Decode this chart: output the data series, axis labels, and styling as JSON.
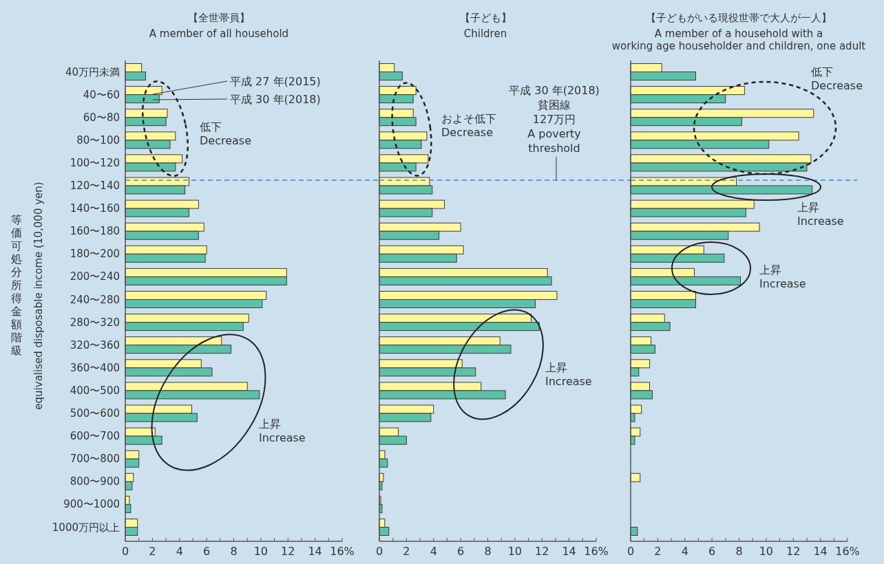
{
  "chart_data": [
    {
      "type": "bar",
      "orientation": "horizontal",
      "title": "【全世帯員】",
      "subtitle": "A member of all household",
      "ylabel": "等価可処分所得金額階級\nequivalised disposable income (10,000 yen)",
      "categories": [
        "40万円未満",
        "40〜60",
        "60〜80",
        "80〜100",
        "100〜120",
        "120〜140",
        "140〜160",
        "160〜180",
        "180〜200",
        "200〜240",
        "240〜280",
        "280〜320",
        "320〜360",
        "360〜400",
        "400〜500",
        "500〜600",
        "600〜700",
        "700〜800",
        "800〜900",
        "900〜1000",
        "1000万円以上"
      ],
      "series": [
        {
          "name": "平成 27 年(2015)",
          "color": "#fff799",
          "values": [
            1.2,
            2.7,
            3.1,
            3.7,
            4.2,
            4.7,
            5.4,
            5.8,
            6.0,
            11.9,
            10.4,
            9.1,
            7.1,
            5.6,
            9.0,
            4.9,
            2.2,
            1.0,
            0.6,
            0.3,
            0.9
          ]
        },
        {
          "name": "平成 30 年(2018)",
          "color": "#5bc2a8",
          "values": [
            1.5,
            2.5,
            3.0,
            3.3,
            3.7,
            4.4,
            4.7,
            5.4,
            5.9,
            11.9,
            10.1,
            8.7,
            7.8,
            6.4,
            9.9,
            5.3,
            2.7,
            1.0,
            0.5,
            0.4,
            0.9
          ]
        }
      ],
      "xlim": [
        0,
        16
      ],
      "xticks": [
        0,
        {
          "value": 1,
          "label": null
        },
        2,
        {
          "value": 3,
          "label": null
        },
        4,
        {
          "value": 5,
          "label": null
        },
        6,
        {
          "value": 7,
          "label": null
        },
        8,
        {
          "value": 9,
          "label": null
        },
        10,
        {
          "value": 11,
          "label": null
        },
        12,
        {
          "value": 13,
          "label": null
        },
        14,
        {
          "value": 15,
          "label": null
        },
        {
          "value": 16,
          "label": "16%"
        }
      ],
      "ref_lines": [
        {
          "axis": "y",
          "value": "120〜140",
          "color": "#3388dd",
          "line_style": "dashed"
        }
      ],
      "annotations": [
        "低下\nDecrease",
        "上昇\nIncrease"
      ]
    },
    {
      "type": "bar",
      "orientation": "horizontal",
      "title": "【子ども】",
      "subtitle": "Children",
      "tick_labels": "x",
      "categories": [
        "40万円未満",
        "40〜60",
        "60〜80",
        "80〜100",
        "100〜120",
        "120〜140",
        "140〜160",
        "160〜180",
        "180〜200",
        "200〜240",
        "240〜280",
        "280〜320",
        "320〜360",
        "360〜400",
        "400〜500",
        "500〜600",
        "600〜700",
        "700〜800",
        "800〜900",
        "900〜1000",
        "1000万円以上"
      ],
      "series": [
        {
          "color": "#fff799",
          "values": [
            1.1,
            2.7,
            2.5,
            3.5,
            3.6,
            3.7,
            4.8,
            6.0,
            6.2,
            12.4,
            13.1,
            11.2,
            8.9,
            6.1,
            7.5,
            4.0,
            1.4,
            0.4,
            0.3,
            0.1,
            0.4
          ]
        },
        {
          "color": "#5bc2a8",
          "values": [
            1.7,
            2.5,
            2.7,
            3.1,
            2.7,
            3.9,
            3.9,
            4.4,
            5.7,
            12.7,
            11.5,
            11.8,
            9.7,
            7.1,
            9.3,
            3.8,
            2.0,
            0.6,
            0.2,
            0.2,
            0.7
          ]
        }
      ],
      "xlim": [
        0,
        16
      ],
      "xticks": [
        0,
        {
          "value": 1,
          "label": null
        },
        2,
        {
          "value": 3,
          "label": null
        },
        4,
        {
          "value": 5,
          "label": null
        },
        6,
        {
          "value": 7,
          "label": null
        },
        8,
        {
          "value": 9,
          "label": null
        },
        10,
        {
          "value": 11,
          "label": null
        },
        12,
        {
          "value": 13,
          "label": null
        },
        14,
        {
          "value": 15,
          "label": null
        },
        {
          "value": 16,
          "label": "16%"
        }
      ],
      "ref_lines": [
        {
          "axis": "y",
          "value": "120〜140",
          "color": "#3388dd",
          "line_style": "dashed",
          "label": "平成 30 年(2018)\n貧困線\n127万円\nA poverty\nthreshold"
        }
      ],
      "annotations": [
        "およそ低下\nDecrease",
        "上昇\nIncrease"
      ]
    },
    {
      "type": "bar",
      "orientation": "horizontal",
      "title": "【子どもがいる現役世帯で大人が一人】",
      "subtitle": "A member of a household with a\nworking age householder and children, one adult",
      "tick_labels": "x",
      "categories": [
        "40万円未満",
        "40〜60",
        "60〜80",
        "80〜100",
        "100〜120",
        "120〜140",
        "140〜160",
        "160〜180",
        "180〜200",
        "200〜240",
        "240〜280",
        "280〜320",
        "320〜360",
        "360〜400",
        "400〜500",
        "500〜600",
        "600〜700",
        "700〜800",
        "800〜900",
        "900〜1000",
        "1000万円以上"
      ],
      "series": [
        {
          "color": "#fff799",
          "values": [
            2.3,
            8.4,
            13.5,
            12.4,
            13.3,
            7.8,
            9.1,
            9.5,
            5.4,
            4.7,
            4.8,
            2.5,
            1.5,
            1.4,
            1.4,
            0.8,
            0.7,
            null,
            0.7,
            null,
            null
          ]
        },
        {
          "color": "#5bc2a8",
          "values": [
            4.8,
            7.0,
            8.2,
            10.2,
            13.0,
            13.4,
            8.5,
            7.2,
            6.9,
            8.1,
            4.8,
            2.9,
            1.8,
            0.6,
            1.6,
            0.3,
            0.3,
            null,
            null,
            null,
            0.5
          ]
        }
      ],
      "xlim": [
        0,
        16
      ],
      "xticks": [
        0,
        {
          "value": 1,
          "label": null
        },
        2,
        {
          "value": 3,
          "label": null
        },
        4,
        {
          "value": 5,
          "label": null
        },
        6,
        {
          "value": 7,
          "label": null
        },
        8,
        {
          "value": 9,
          "label": null
        },
        10,
        {
          "value": 11,
          "label": null
        },
        12,
        {
          "value": 13,
          "label": null
        },
        14,
        {
          "value": 15,
          "label": null
        },
        {
          "value": 16,
          "label": "16%"
        }
      ],
      "ref_lines": [
        {
          "axis": "y",
          "value": "120〜140",
          "color": "#3388dd",
          "line_style": "dashed"
        }
      ],
      "annotations": [
        "低下\nDecrease",
        "上昇\nIncrease",
        "上昇\nIncrease"
      ]
    }
  ]
}
